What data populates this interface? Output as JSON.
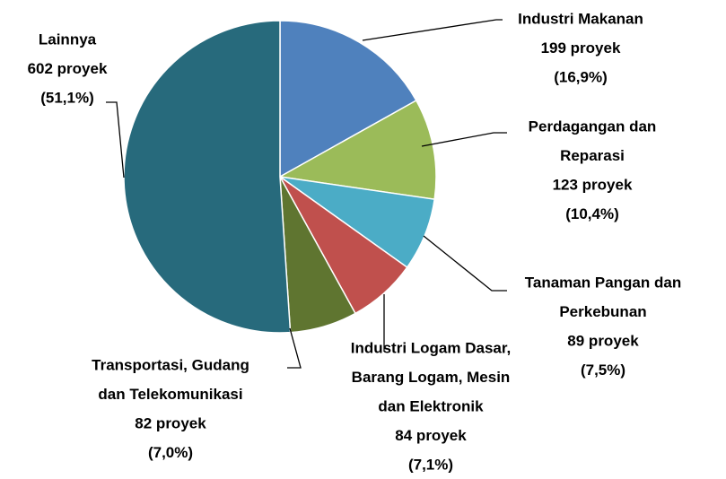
{
  "chart_data": {
    "type": "pie",
    "categories": [
      [
        "Industri Makanan"
      ],
      [
        "Perdagangan dan",
        "Reparasi"
      ],
      [
        "Tanaman Pangan dan",
        "Perkebunan"
      ],
      [
        "Industri Logam Dasar,",
        "Barang Logam, Mesin",
        "dan Elektronik"
      ],
      [
        "Transportasi, Gudang",
        "dan Telekomunikasi"
      ],
      [
        "Lainnya"
      ]
    ],
    "values": [
      199,
      123,
      89,
      84,
      82,
      602
    ],
    "value_labels": [
      "199 proyek",
      "123 proyek",
      "89 proyek",
      "84 proyek",
      "82 proyek",
      "602 proyek"
    ],
    "percentages": [
      16.9,
      10.4,
      7.5,
      7.1,
      7.0,
      51.1
    ],
    "percentage_labels": [
      "(16,9%)",
      "(10,4%)",
      "(7,5%)",
      "(7,1%)",
      "(7,0%)",
      "(51,1%)"
    ],
    "colors": [
      "#4f81bd",
      "#9bbb59",
      "#4bacc6",
      "#c0504d",
      "#5f7530",
      "#276a7c"
    ]
  }
}
